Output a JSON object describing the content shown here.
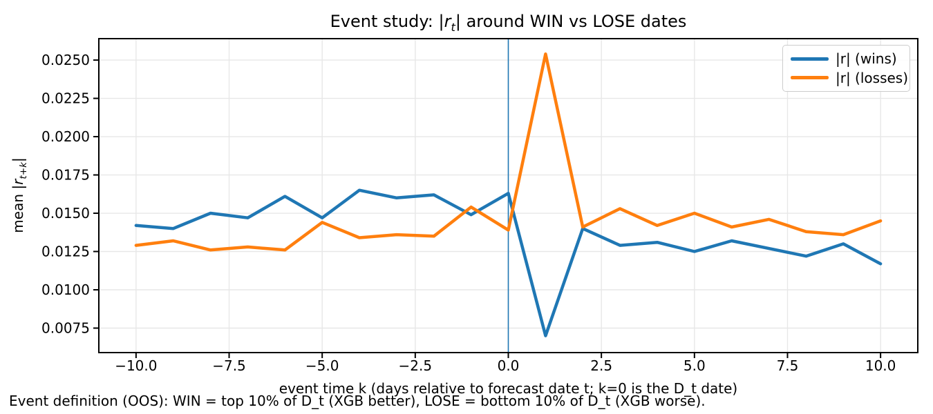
{
  "title": {
    "prefix": "Event study: |",
    "math_r": "r",
    "math_sub": "t",
    "suffix": "| around WIN vs LOSE dates"
  },
  "axes": {
    "xlabel": "event time k (days relative to forecast date t; k=0 is the D_t date)",
    "ylabel": {
      "prefix": "mean |",
      "math_r": "r",
      "math_sub": "t+k",
      "suffix": "|"
    }
  },
  "caption": "Event definition (OOS): WIN = top 10% of D_t (XGB better), LOSE = bottom 10% of D_t (XGB worse).",
  "legend": {
    "items": [
      {
        "label": "|r| (wins)",
        "color": "#1f77b4"
      },
      {
        "label": "|r| (losses)",
        "color": "#ff7f0e"
      }
    ]
  },
  "colors": {
    "wins": "#1f77b4",
    "losses": "#ff7f0e",
    "event_line": "#1f77b4",
    "grid": "#e7e7e7",
    "spine": "#000000",
    "legend_border": "#cccccc"
  },
  "chart_data": {
    "type": "line",
    "title": "Event study: |r_t| around WIN vs LOSE dates",
    "xlabel": "event time k (days relative to forecast date t; k=0 is the D_t date)",
    "ylabel": "mean |r_{t+k}|",
    "x": [
      -10,
      -9,
      -8,
      -7,
      -6,
      -5,
      -4,
      -3,
      -2,
      -1,
      0,
      1,
      2,
      3,
      4,
      5,
      6,
      7,
      8,
      9,
      10
    ],
    "series": [
      {
        "name": "|r| (wins)",
        "color": "#1f77b4",
        "values": [
          0.0142,
          0.014,
          0.015,
          0.0147,
          0.0161,
          0.0147,
          0.0165,
          0.016,
          0.0162,
          0.0149,
          0.0163,
          0.007,
          0.014,
          0.0129,
          0.0131,
          0.0125,
          0.0132,
          0.0127,
          0.0122,
          0.013,
          0.0117
        ]
      },
      {
        "name": "|r| (losses)",
        "color": "#ff7f0e",
        "values": [
          0.0129,
          0.0132,
          0.0126,
          0.0128,
          0.0126,
          0.0144,
          0.0134,
          0.0136,
          0.0135,
          0.0154,
          0.0139,
          0.0254,
          0.0141,
          0.0153,
          0.0142,
          0.015,
          0.0141,
          0.0146,
          0.0138,
          0.0136,
          0.0145
        ]
      }
    ],
    "event_line_x": 0,
    "xlim": [
      -11,
      11
    ],
    "ylim": [
      0.0059,
      0.0264
    ],
    "grid": true,
    "legend_position": "upper right",
    "x_ticks": [
      {
        "v": -10.0,
        "label": "−10.0"
      },
      {
        "v": -7.5,
        "label": "−7.5"
      },
      {
        "v": -5.0,
        "label": "−5.0"
      },
      {
        "v": -2.5,
        "label": "−2.5"
      },
      {
        "v": 0.0,
        "label": "0.0"
      },
      {
        "v": 2.5,
        "label": "2.5"
      },
      {
        "v": 5.0,
        "label": "5.0"
      },
      {
        "v": 7.5,
        "label": "7.5"
      },
      {
        "v": 10.0,
        "label": "10.0"
      }
    ],
    "y_ticks": [
      {
        "v": 0.0075,
        "label": "0.0075"
      },
      {
        "v": 0.01,
        "label": "0.0100"
      },
      {
        "v": 0.0125,
        "label": "0.0125"
      },
      {
        "v": 0.015,
        "label": "0.0150"
      },
      {
        "v": 0.0175,
        "label": "0.0175"
      },
      {
        "v": 0.02,
        "label": "0.0200"
      },
      {
        "v": 0.0225,
        "label": "0.0225"
      },
      {
        "v": 0.025,
        "label": "0.0250"
      }
    ]
  }
}
